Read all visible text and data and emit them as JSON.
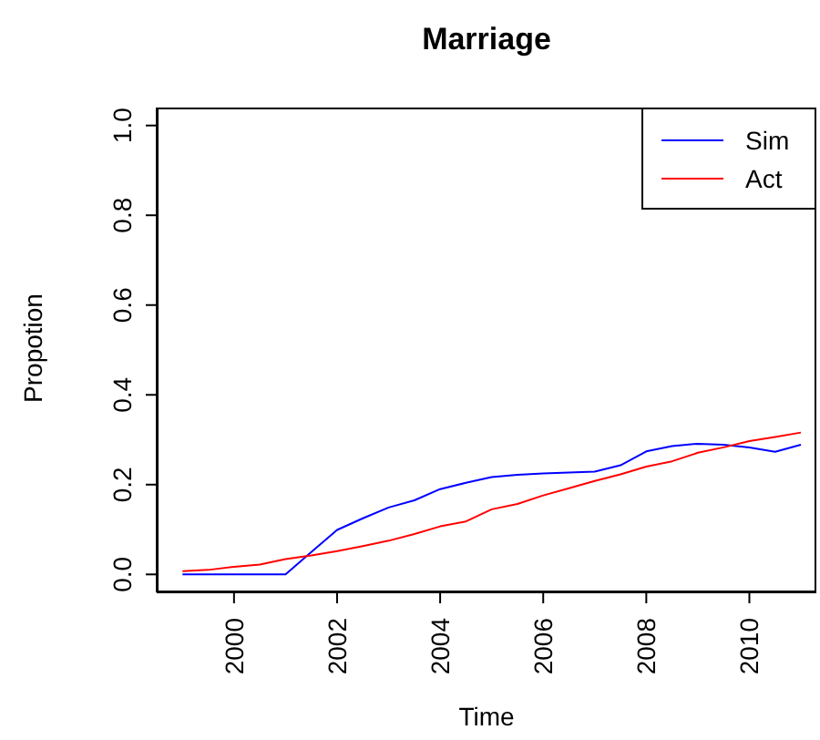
{
  "chart_data": {
    "type": "line",
    "title": "Marriage",
    "xlabel": "Time",
    "ylabel": "Propotion",
    "x": [
      1999,
      1999.5,
      2000,
      2000.5,
      2001,
      2001.5,
      2002,
      2002.5,
      2003,
      2003.5,
      2004,
      2004.5,
      2005,
      2005.5,
      2006,
      2006.5,
      2007,
      2007.5,
      2008,
      2008.5,
      2009,
      2009.5,
      2010,
      2010.5,
      2011
    ],
    "series": [
      {
        "name": "Sim",
        "color": "#0000ff",
        "values": [
          0,
          0,
          0,
          0,
          0,
          0.05,
          0.099,
          0.125,
          0.149,
          0.165,
          0.19,
          0.204,
          0.217,
          0.222,
          0.225,
          0.227,
          0.229,
          0.243,
          0.274,
          0.286,
          0.291,
          0.289,
          0.283,
          0.273,
          0.289
        ]
      },
      {
        "name": "Act",
        "color": "#ff0000",
        "values": [
          0.007,
          0.01,
          0.017,
          0.022,
          0.034,
          0.042,
          0.052,
          0.063,
          0.075,
          0.09,
          0.107,
          0.118,
          0.145,
          0.157,
          0.176,
          0.192,
          0.208,
          0.223,
          0.24,
          0.252,
          0.271,
          0.283,
          0.297,
          0.306,
          0.316
        ]
      }
    ],
    "xlim": [
      1998.5,
      2011.3
    ],
    "xticks": [
      2000,
      2002,
      2004,
      2006,
      2008,
      2010
    ],
    "ylim": [
      -0.04,
      1.04
    ],
    "yticks": [
      {
        "value": 0,
        "label": "0.0"
      },
      {
        "value": 0.2,
        "label": "0.2"
      },
      {
        "value": 0.4,
        "label": "0.4"
      },
      {
        "value": 0.6,
        "label": "0.6"
      },
      {
        "value": 0.8,
        "label": "0.8"
      },
      {
        "value": 1,
        "label": "1.0"
      }
    ],
    "legend": "top right",
    "grid": false,
    "marker": "none",
    "line_style": "solid"
  }
}
